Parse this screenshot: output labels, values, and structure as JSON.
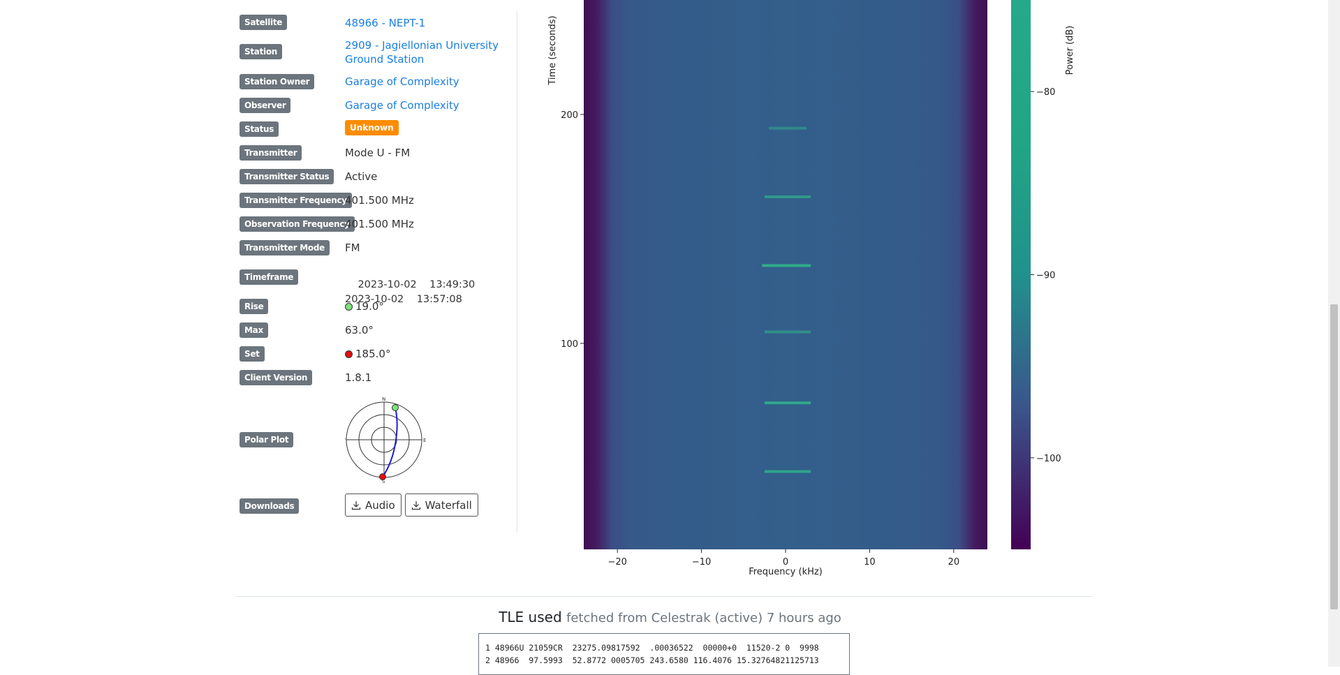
{
  "details": {
    "satellite": {
      "label": "Satellite",
      "value": "48966 - NEPT-1"
    },
    "station": {
      "label": "Station",
      "value_line1": "2909 - Jagiellonian University",
      "value_line2": "Ground Station"
    },
    "station_owner": {
      "label": "Station Owner",
      "value": "Garage of Complexity"
    },
    "observer": {
      "label": "Observer",
      "value": "Garage of Complexity"
    },
    "status": {
      "label": "Status",
      "value": "Unknown",
      "color": "#fd8c00"
    },
    "transmitter": {
      "label": "Transmitter",
      "value": "Mode U - FM"
    },
    "transmitter_status": {
      "label": "Transmitter Status",
      "value": "Active"
    },
    "transmitter_frequency": {
      "label": "Transmitter Frequency",
      "value": "401.500 MHz"
    },
    "observation_frequency": {
      "label": "Observation Frequency",
      "value": "401.500 MHz"
    },
    "transmitter_mode": {
      "label": "Transmitter Mode",
      "value": "FM"
    },
    "timeframe": {
      "label": "Timeframe",
      "start": "2023-10-02    13:49:30",
      "end": "2023-10-02    13:57:08"
    },
    "rise": {
      "label": "Rise",
      "value": "19.0°",
      "color": "#7be27b"
    },
    "max": {
      "label": "Max",
      "value": "63.0°"
    },
    "set": {
      "label": "Set",
      "value": "185.0°",
      "color": "#e01010"
    },
    "client_version": {
      "label": "Client Version",
      "value": "1.8.1"
    },
    "polar_plot": {
      "label": "Polar Plot",
      "n": "N",
      "s": "S",
      "e": "E",
      "w": "W"
    },
    "downloads": {
      "label": "Downloads",
      "audio": "Audio",
      "waterfall": "Waterfall"
    }
  },
  "chart_data": {
    "type": "heatmap",
    "title": "",
    "xlabel": "Frequency (kHz)",
    "ylabel": "Time (seconds)",
    "xlim": [
      -24,
      24
    ],
    "ylim": [
      10,
      250
    ],
    "x_ticks": [
      -20,
      -10,
      0,
      10,
      20
    ],
    "x_tick_labels": [
      "−20",
      "−10",
      "0",
      "10",
      "20"
    ],
    "y_ticks": [
      100,
      200
    ],
    "y_tick_labels": [
      "100",
      "200"
    ],
    "colorbar": {
      "label": "Power (dB)",
      "ticks": [
        -80,
        -90,
        -100
      ],
      "tick_labels": [
        "−80",
        "−90",
        "−100"
      ],
      "range": [
        -105,
        -75
      ],
      "colormap": "viridis"
    },
    "signal_bursts": [
      {
        "time": 44,
        "freq_low": -2.5,
        "freq_high": 3,
        "strength": 0.8
      },
      {
        "time": 74,
        "freq_low": -2.5,
        "freq_high": 3,
        "strength": 0.9
      },
      {
        "time": 105,
        "freq_low": -2.5,
        "freq_high": 3,
        "strength": 0.4
      },
      {
        "time": 134,
        "freq_low": -2.8,
        "freq_high": 3,
        "strength": 1.0
      },
      {
        "time": 164,
        "freq_low": -2.5,
        "freq_high": 3,
        "strength": 0.6
      },
      {
        "time": 194,
        "freq_low": -2,
        "freq_high": 2.5,
        "strength": 0.3
      }
    ]
  },
  "tle": {
    "title": "TLE used",
    "subtitle": "fetched from Celestrak (active) 7 hours ago",
    "line1": "1 48966U 21059CR  23275.09817592  .00036522  00000+0  11520-2 0  9998",
    "line2": "2 48966  97.5993  52.8772 0005705 243.6580 116.4076 15.32764821125713"
  }
}
